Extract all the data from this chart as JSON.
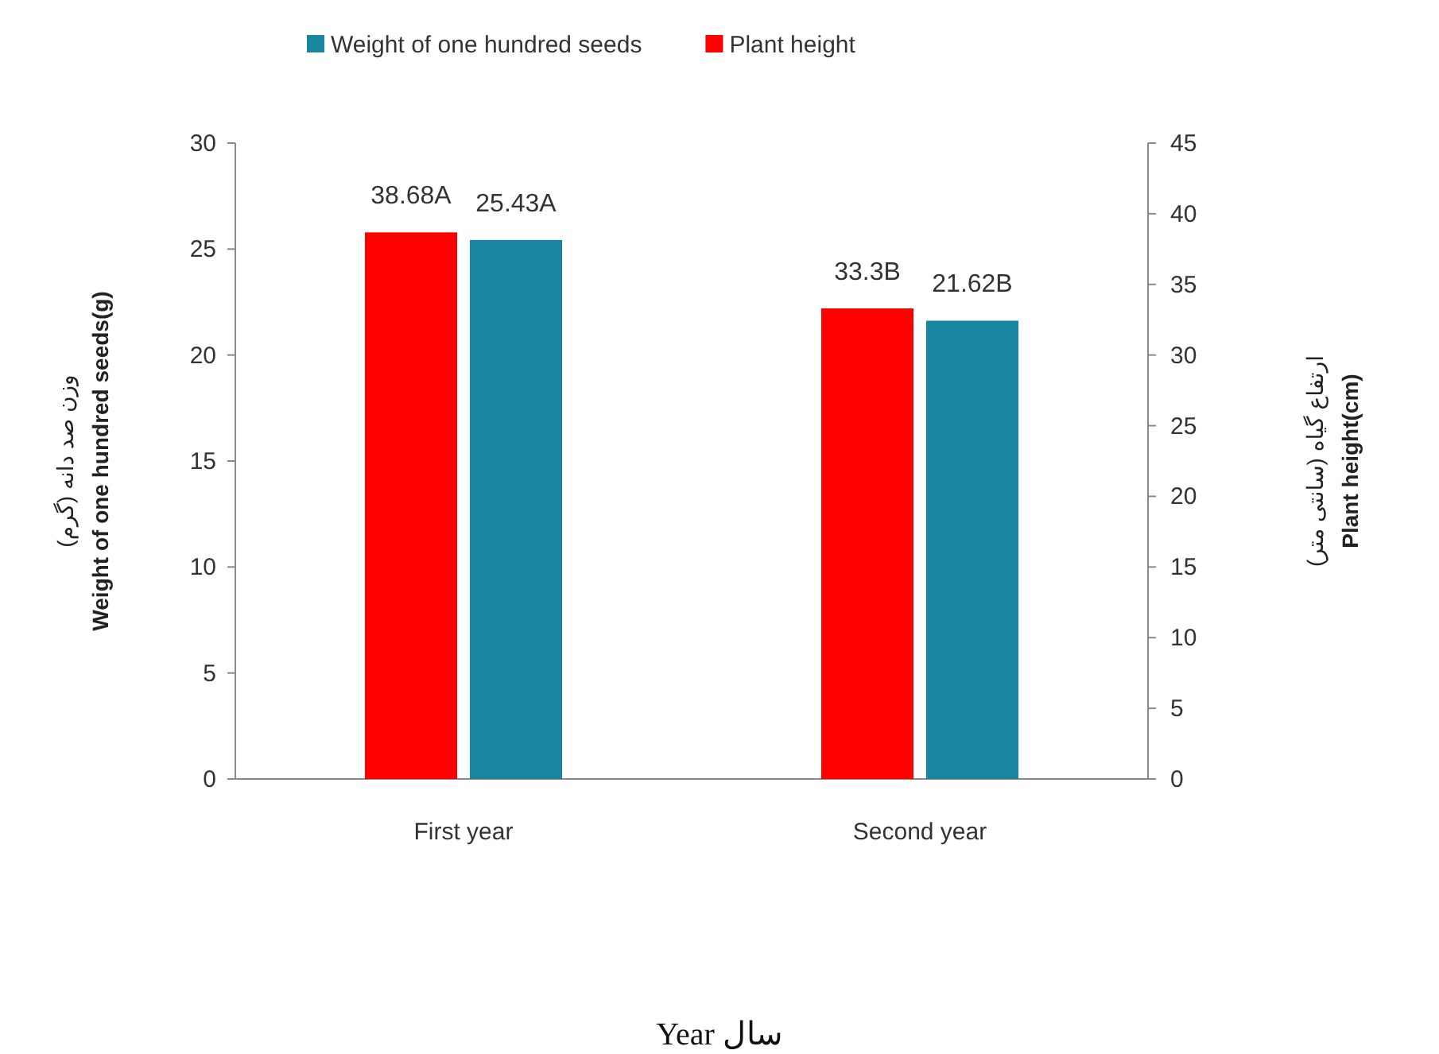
{
  "chart_data": {
    "type": "bar",
    "categories": [
      "First year",
      "Second year"
    ],
    "series": [
      {
        "name": "Plant height",
        "color": "#ff0000",
        "axis": "y2",
        "values": [
          38.68,
          33.3
        ],
        "value_labels": [
          "38.68A",
          "33.3B"
        ]
      },
      {
        "name": "Weight of one hundred seeds",
        "color": "#17869e",
        "values": [
          25.43,
          21.62
        ],
        "value_labels": [
          "25.43A",
          "21.62B"
        ]
      }
    ],
    "ylabel": "وزن صد دانه (گرم)\nWeight of one hundred seeds(g)",
    "y2label": "ارتفاع گیاه (سانتی متر)\nPlant height(cm)",
    "annotations": [
      "Year سال"
    ],
    "ylim": [
      0,
      30
    ],
    "yticks": [
      0,
      5,
      10,
      15,
      20,
      25,
      30
    ],
    "y2lim": [
      0,
      45
    ],
    "y2ticks": [
      0,
      5,
      10,
      15,
      20,
      25,
      30,
      35,
      40,
      45
    ],
    "legend": "top",
    "grid": false
  }
}
